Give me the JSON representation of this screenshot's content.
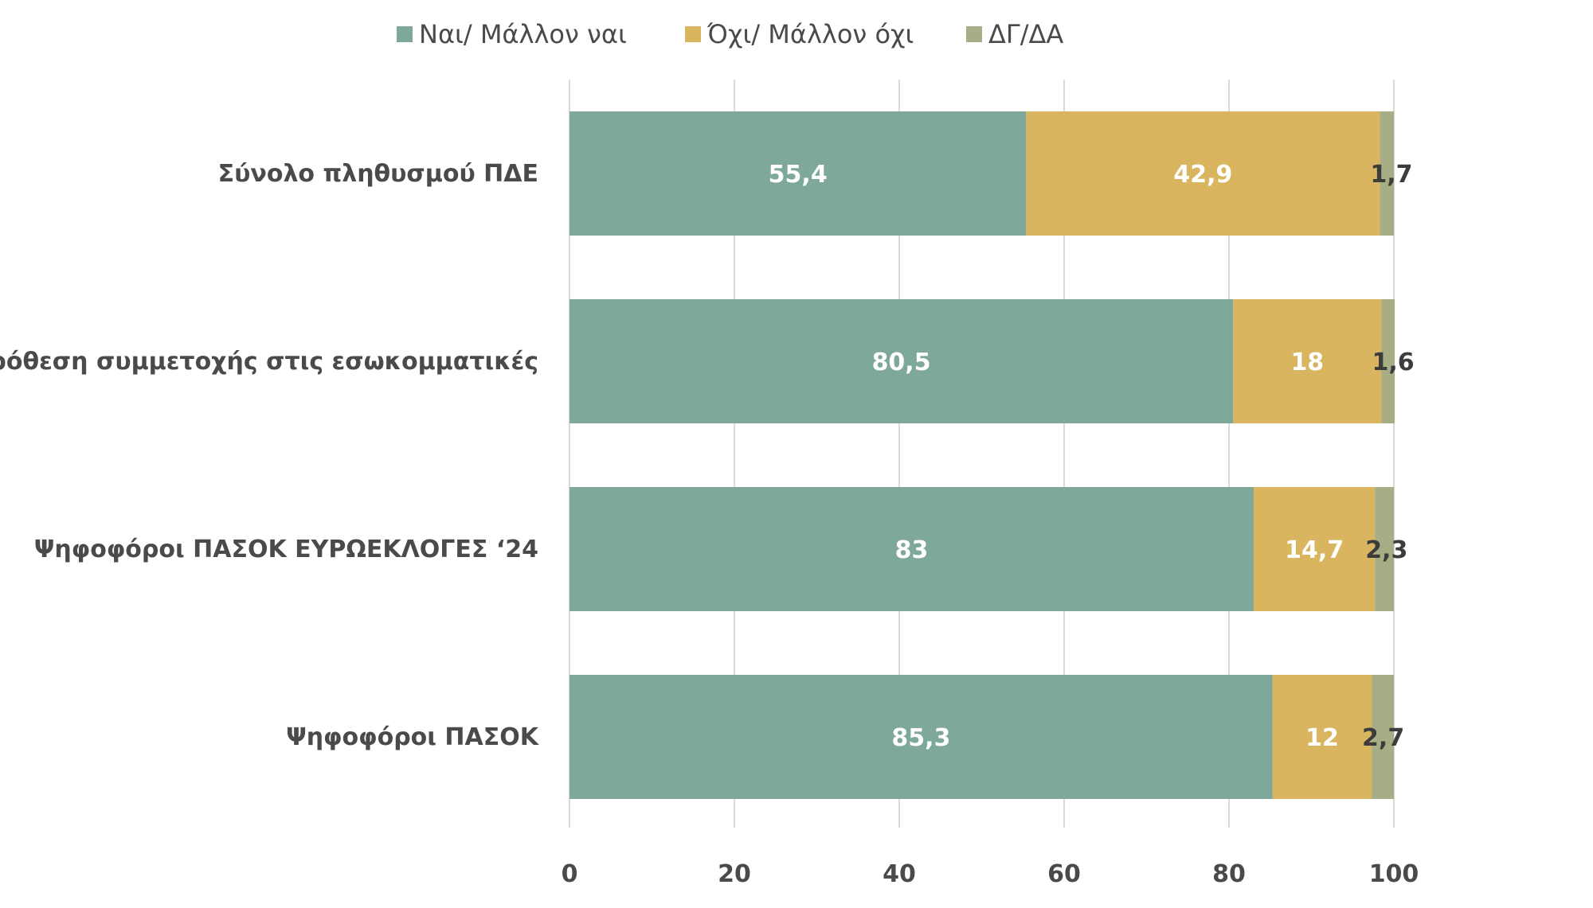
{
  "chart_data": {
    "type": "bar",
    "orientation": "horizontal",
    "stacked": true,
    "title": "",
    "xlabel": "",
    "ylabel": "",
    "xlim": [
      0,
      100
    ],
    "x_ticks": [
      0,
      20,
      40,
      60,
      80,
      100
    ],
    "grid": true,
    "legend_position": "top",
    "categories": [
      "Σύνολο πληθυσμού ΠΔΕ",
      "Πρόθεση συμμετοχής στις εσωκομματικές",
      "Ψηφοφόροι ΠΑΣΟΚ ΕΥΡΩΕΚΛΟΓΕΣ ‘24",
      "Ψηφοφόροι ΠΑΣΟΚ"
    ],
    "series": [
      {
        "name": "Ναι/ Μάλλον ναι",
        "color": "#7ea899",
        "label_color": "#ffffff",
        "values": [
          55.4,
          80.5,
          83,
          85.3
        ],
        "labels": [
          "55,4",
          "80,5",
          "83",
          "85,3"
        ]
      },
      {
        "name": "Όχι/ Μάλλον όχι",
        "color": "#d8b55e",
        "label_color": "#ffffff",
        "values": [
          42.9,
          18,
          14.7,
          12
        ],
        "labels": [
          "42,9",
          "18",
          "14,7",
          "12"
        ]
      },
      {
        "name": "ΔΓ/ΔΑ",
        "color": "#a7ae85",
        "label_color": "#3c3c3c",
        "values": [
          1.7,
          1.6,
          2.3,
          2.7
        ],
        "labels": [
          "1,7",
          "1,6",
          "2,3",
          "2,7"
        ]
      }
    ]
  }
}
